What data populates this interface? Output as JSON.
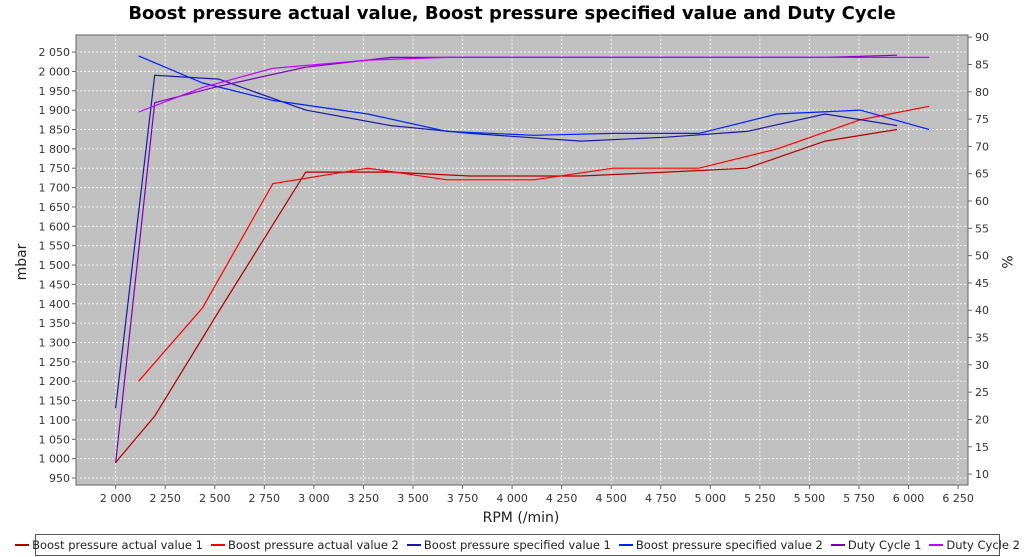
{
  "chart_data": {
    "type": "line",
    "title": "Boost pressure actual value, Boost pressure specified value and Duty Cycle",
    "xlabel": "RPM (/min)",
    "ylabel": "mbar",
    "y2label": "%",
    "xlim": [
      1800,
      6300
    ],
    "ylim": [
      932,
      2094
    ],
    "y2lim": [
      8,
      90.4
    ],
    "grid": true,
    "legend_position": "bottom",
    "background": "#c0c0c0",
    "x_ticks": [
      2000,
      2250,
      2500,
      2750,
      3000,
      3250,
      3500,
      3750,
      4000,
      4250,
      4500,
      4750,
      5000,
      5250,
      5500,
      5750,
      6000,
      6250
    ],
    "x_tick_labels": [
      "2 000",
      "2 250",
      "2 500",
      "2 750",
      "3 000",
      "3 250",
      "3 500",
      "3 750",
      "4 000",
      "4 250",
      "4 500",
      "4 750",
      "5 000",
      "5 250",
      "5 500",
      "5 750",
      "6 000",
      "6 250"
    ],
    "y_ticks": [
      950,
      1000,
      1050,
      1100,
      1150,
      1200,
      1250,
      1300,
      1350,
      1400,
      1450,
      1500,
      1550,
      1600,
      1650,
      1700,
      1750,
      1800,
      1850,
      1900,
      1950,
      2000,
      2050
    ],
    "y_tick_labels": [
      "950",
      "1 000",
      "1 050",
      "1 100",
      "1 150",
      "1 200",
      "1 250",
      "1 300",
      "1 350",
      "1 400",
      "1 450",
      "1 500",
      "1 550",
      "1 600",
      "1 650",
      "1 700",
      "1 750",
      "1 800",
      "1 850",
      "1 900",
      "1 950",
      "2 000",
      "2 050"
    ],
    "y2_ticks": [
      10,
      15,
      20,
      25,
      30,
      35,
      40,
      45,
      50,
      55,
      60,
      65,
      70,
      75,
      80,
      85,
      90
    ],
    "y2_tick_labels": [
      "10",
      "15",
      "20",
      "25",
      "30",
      "35",
      "40",
      "45",
      "50",
      "55",
      "60",
      "65",
      "70",
      "75",
      "80",
      "85",
      "90"
    ],
    "series": [
      {
        "name": "Boost pressure actual value 1",
        "axis": "left",
        "color": "#b00000",
        "x": [
          2000,
          2197,
          2520,
          2959,
          3388,
          3787,
          4347,
          4776,
          5185,
          5579,
          5942
        ],
        "y": [
          990,
          1110,
          1380,
          1740,
          1740,
          1730,
          1730,
          1740,
          1750,
          1820,
          1850
        ]
      },
      {
        "name": "Boost pressure actual value 2",
        "axis": "left",
        "color": "#ff0000",
        "x": [
          2116,
          2439,
          2793,
          3272,
          3671,
          4110,
          4509,
          4943,
          5337,
          5756,
          6104
        ],
        "y": [
          1200,
          1390,
          1710,
          1750,
          1720,
          1720,
          1750,
          1750,
          1800,
          1875,
          1910
        ]
      },
      {
        "name": "Boost pressure specified value 1",
        "axis": "left",
        "color": "#1a1aa8",
        "x": [
          2000,
          2197,
          2520,
          2959,
          3388,
          3787,
          4347,
          4776,
          5185,
          5579,
          5942
        ],
        "y": [
          1130,
          1990,
          1980,
          1900,
          1860,
          1840,
          1820,
          1830,
          1845,
          1890,
          1860
        ]
      },
      {
        "name": "Boost pressure specified value 2",
        "axis": "left",
        "color": "#0022ff",
        "x": [
          2116,
          2439,
          2793,
          3272,
          3671,
          4110,
          4509,
          4943,
          5337,
          5756,
          6104
        ],
        "y": [
          2040,
          1970,
          1925,
          1890,
          1845,
          1835,
          1840,
          1840,
          1890,
          1900,
          1850
        ]
      },
      {
        "name": "Duty Cycle 1",
        "axis": "right",
        "color": "#7a00b8",
        "x": [
          2000,
          2197,
          2520,
          2959,
          3388,
          3787,
          4347,
          4776,
          5185,
          5579,
          5942
        ],
        "y": [
          12,
          78,
          81,
          84.5,
          86.3,
          86.3,
          86.3,
          86.3,
          86.3,
          86.3,
          86.7
        ]
      },
      {
        "name": "Duty Cycle 2",
        "axis": "right",
        "color": "#c000ff",
        "x": [
          2116,
          2439,
          2793,
          3272,
          3671,
          4110,
          4509,
          4943,
          5337,
          5756,
          6104
        ],
        "y": [
          76.3,
          80.8,
          84.3,
          85.8,
          86.3,
          86.3,
          86.3,
          86.3,
          86.3,
          86.3,
          86.3
        ]
      }
    ]
  }
}
